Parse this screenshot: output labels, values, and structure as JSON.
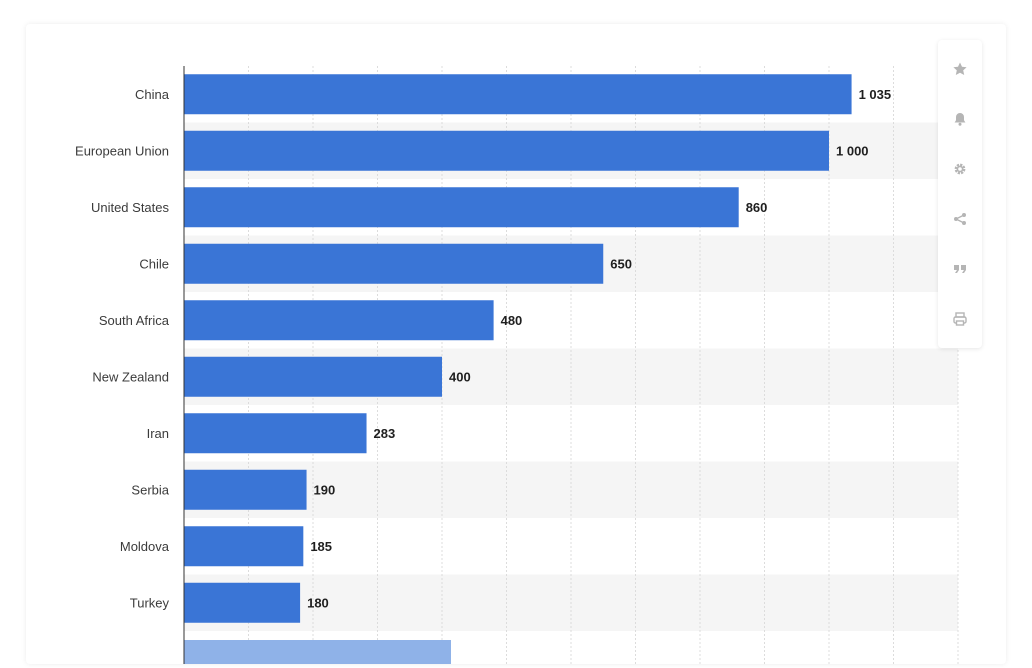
{
  "toolbar": {
    "buttons": [
      {
        "icon": "star-icon"
      },
      {
        "icon": "bell-icon"
      },
      {
        "icon": "gear-icon"
      },
      {
        "icon": "share-icon"
      },
      {
        "icon": "quote-icon"
      },
      {
        "icon": "print-icon"
      }
    ]
  },
  "colors": {
    "bar": "#3a75d6",
    "partial_bar": "#8fb2e8",
    "band": "#f5f5f5",
    "grid": "#dcdcdc",
    "toolbar_icon": "#b5b5b5"
  },
  "chart_data": {
    "type": "bar",
    "orientation": "horizontal",
    "categories": [
      "China",
      "European Union",
      "United States",
      "Chile",
      "South Africa",
      "New Zealand",
      "Iran",
      "Serbia",
      "Moldova",
      "Turkey"
    ],
    "values": [
      1035,
      1000,
      860,
      650,
      480,
      400,
      283,
      190,
      185,
      180
    ],
    "value_labels": [
      "1 035",
      "1 000",
      "860",
      "650",
      "480",
      "400",
      "283",
      "190",
      "185",
      "180"
    ],
    "xlim": [
      0,
      1200
    ],
    "grid": true,
    "alternating_row_bands": true
  },
  "footer": {
    "text": ""
  }
}
